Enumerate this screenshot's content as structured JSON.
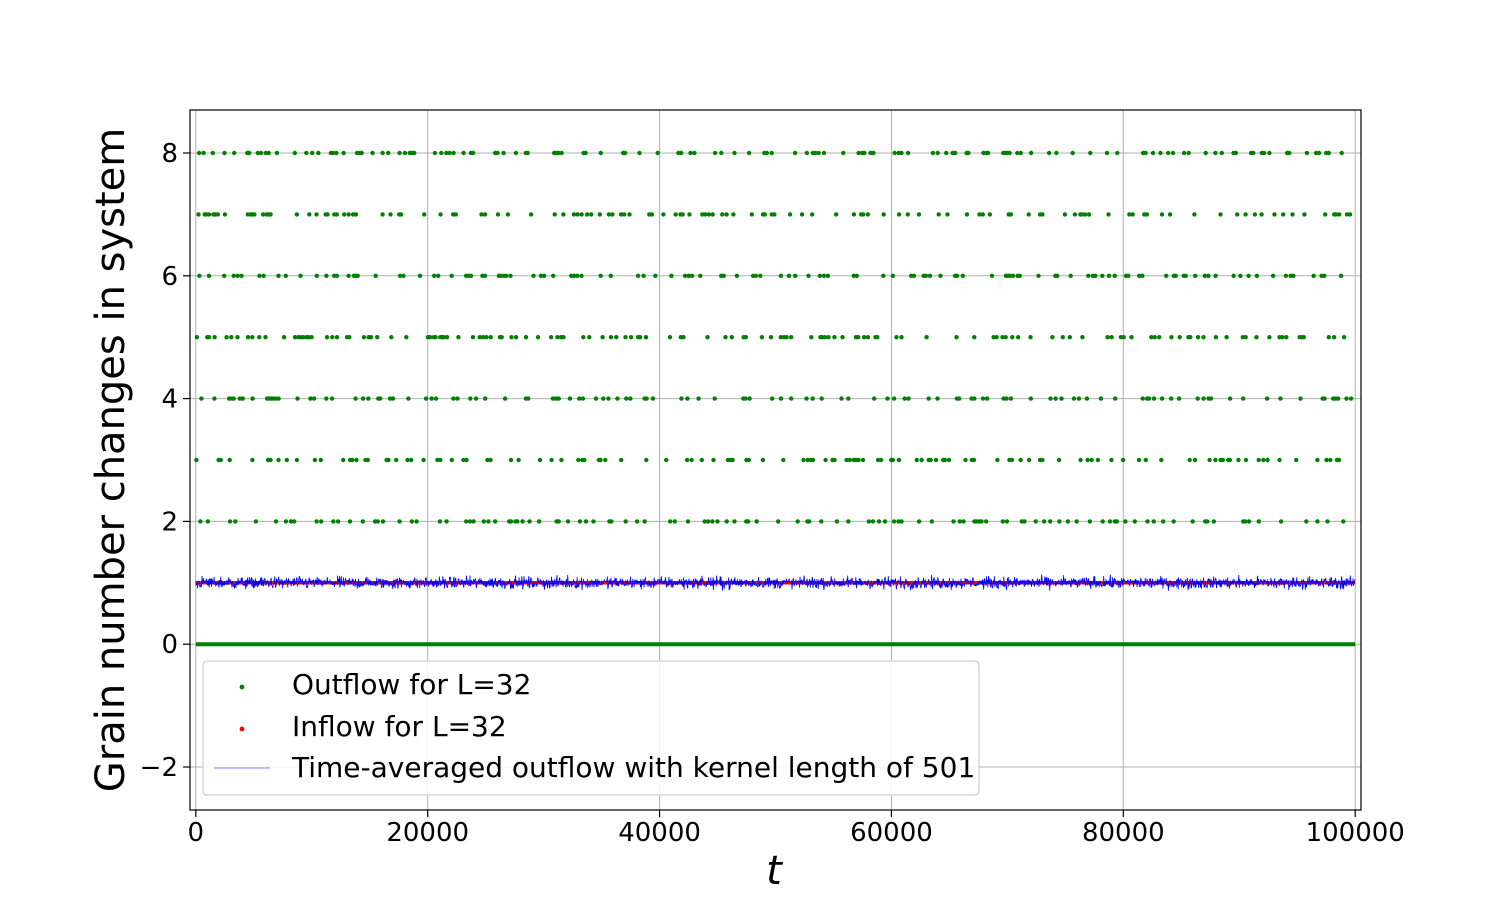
{
  "chart_data": {
    "type": "scatter",
    "title": "",
    "xlabel": "t",
    "ylabel": "Grain number changes in system",
    "xlim": [
      -500,
      100500
    ],
    "ylim": [
      -2.7,
      8.7
    ],
    "grid": true,
    "legend_position": "lower-left",
    "x_ticks": [
      0,
      20000,
      40000,
      60000,
      80000,
      100000
    ],
    "x_tick_labels": [
      "0",
      "20000",
      "40000",
      "60000",
      "80000",
      "100000"
    ],
    "y_ticks": [
      -2,
      0,
      2,
      4,
      6,
      8
    ],
    "y_tick_labels": [
      "−2",
      "0",
      "2",
      "4",
      "6",
      "8"
    ],
    "series": [
      {
        "name": "Outflow for L=32",
        "kind": "scatter",
        "color": "#008000",
        "x_range": [
          0,
          100000
        ],
        "levels": [
          0,
          2,
          3,
          4,
          5,
          6,
          7,
          8
        ],
        "note_levels": "discrete outflow values; 0 is dense band, higher values sparse"
      },
      {
        "name": "Inflow for L=32",
        "kind": "scatter",
        "color": "#ff0000",
        "x_range": [
          0,
          100000
        ],
        "value": 1
      },
      {
        "name": "Time-averaged outflow with kernel length of 501",
        "kind": "line",
        "color": "#0000ff",
        "x_range": [
          0,
          100000
        ],
        "mean": 1.0,
        "fluctuation_range": [
          0.82,
          1.18
        ]
      }
    ]
  }
}
